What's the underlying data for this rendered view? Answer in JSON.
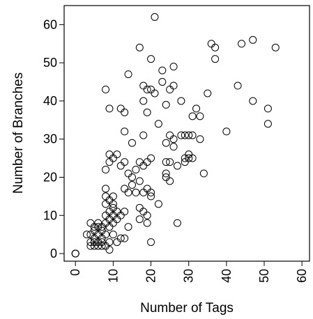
{
  "chart_data": {
    "type": "scatter",
    "title": "",
    "xlabel": "Number of Tags",
    "ylabel": "Number of Branches",
    "xlim": [
      -3,
      62
    ],
    "ylim": [
      -2,
      65
    ],
    "x_ticks": [
      0,
      10,
      20,
      30,
      40,
      50,
      60
    ],
    "y_ticks": [
      0,
      10,
      20,
      30,
      40,
      50,
      60
    ],
    "grid": false,
    "legend": "none",
    "marker": "open-circle",
    "points": [
      [
        0,
        0
      ],
      [
        0,
        0
      ],
      [
        0,
        0
      ],
      [
        4,
        2
      ],
      [
        4,
        3
      ],
      [
        5,
        2
      ],
      [
        5,
        3
      ],
      [
        5,
        4
      ],
      [
        6,
        2
      ],
      [
        6,
        3
      ],
      [
        6,
        5
      ],
      [
        7,
        2
      ],
      [
        7,
        3
      ],
      [
        7,
        4
      ],
      [
        4,
        5
      ],
      [
        5,
        6
      ],
      [
        6,
        7
      ],
      [
        7,
        6
      ],
      [
        8,
        2
      ],
      [
        8,
        5
      ],
      [
        3,
        5
      ],
      [
        4,
        8
      ],
      [
        5,
        7
      ],
      [
        6,
        8
      ],
      [
        7,
        7
      ],
      [
        8,
        8
      ],
      [
        8,
        10
      ],
      [
        9,
        9
      ],
      [
        9,
        11
      ],
      [
        10,
        10
      ],
      [
        10,
        8
      ],
      [
        10,
        12
      ],
      [
        11,
        11
      ],
      [
        11,
        9
      ],
      [
        12,
        10
      ],
      [
        8,
        13
      ],
      [
        8,
        15
      ],
      [
        9,
        14
      ],
      [
        10,
        13
      ],
      [
        10,
        15
      ],
      [
        8,
        17
      ],
      [
        9,
        7
      ],
      [
        10,
        5
      ],
      [
        9,
        3
      ],
      [
        11,
        3
      ],
      [
        12,
        4
      ],
      [
        13,
        4
      ],
      [
        9,
        1
      ],
      [
        14,
        7
      ],
      [
        13,
        11
      ],
      [
        8,
        22
      ],
      [
        9,
        24
      ],
      [
        9,
        26
      ],
      [
        10,
        25
      ],
      [
        11,
        26
      ],
      [
        12,
        23
      ],
      [
        13,
        24
      ],
      [
        13,
        17
      ],
      [
        14,
        21
      ],
      [
        14,
        16
      ],
      [
        15,
        18
      ],
      [
        15,
        20
      ],
      [
        16,
        22
      ],
      [
        16,
        16
      ],
      [
        17,
        19
      ],
      [
        17,
        12
      ],
      [
        17,
        9
      ],
      [
        18,
        11
      ],
      [
        18,
        16
      ],
      [
        19,
        17
      ],
      [
        19,
        8
      ],
      [
        19,
        10
      ],
      [
        20,
        3
      ],
      [
        20,
        16
      ],
      [
        20,
        15
      ],
      [
        17,
        24
      ],
      [
        18,
        23
      ],
      [
        19,
        24
      ],
      [
        20,
        25
      ],
      [
        22,
        13
      ],
      [
        8,
        43
      ],
      [
        9,
        38
      ],
      [
        12,
        38
      ],
      [
        13,
        37
      ],
      [
        13,
        32
      ],
      [
        14,
        47
      ],
      [
        15,
        29
      ],
      [
        17,
        54
      ],
      [
        18,
        31
      ],
      [
        18,
        40
      ],
      [
        18,
        44
      ],
      [
        19,
        43
      ],
      [
        19,
        37
      ],
      [
        20,
        51
      ],
      [
        20,
        43
      ],
      [
        21,
        62
      ],
      [
        21,
        42
      ],
      [
        22,
        34
      ],
      [
        23,
        48
      ],
      [
        23,
        45
      ],
      [
        24,
        39
      ],
      [
        24,
        21
      ],
      [
        24,
        20
      ],
      [
        25,
        19
      ],
      [
        25,
        24
      ],
      [
        24,
        24
      ],
      [
        25,
        43
      ],
      [
        26,
        44
      ],
      [
        26,
        49
      ],
      [
        26,
        28
      ],
      [
        24,
        29
      ],
      [
        25,
        31
      ],
      [
        26,
        30
      ],
      [
        27,
        23
      ],
      [
        27,
        8
      ],
      [
        28,
        31
      ],
      [
        28,
        40
      ],
      [
        29,
        31
      ],
      [
        29,
        25
      ],
      [
        29,
        24
      ],
      [
        30,
        31
      ],
      [
        30,
        25
      ],
      [
        31,
        31
      ],
      [
        31,
        36
      ],
      [
        31,
        25
      ],
      [
        32,
        38
      ],
      [
        33,
        30
      ],
      [
        33,
        36
      ],
      [
        34,
        21
      ],
      [
        35,
        42
      ],
      [
        36,
        55
      ],
      [
        37,
        54
      ],
      [
        37,
        51
      ],
      [
        40,
        32
      ],
      [
        43,
        44
      ],
      [
        44,
        55
      ],
      [
        47,
        56
      ],
      [
        47,
        40
      ],
      [
        51,
        38
      ],
      [
        51,
        34
      ],
      [
        53,
        54
      ],
      [
        30,
        26
      ]
    ]
  }
}
